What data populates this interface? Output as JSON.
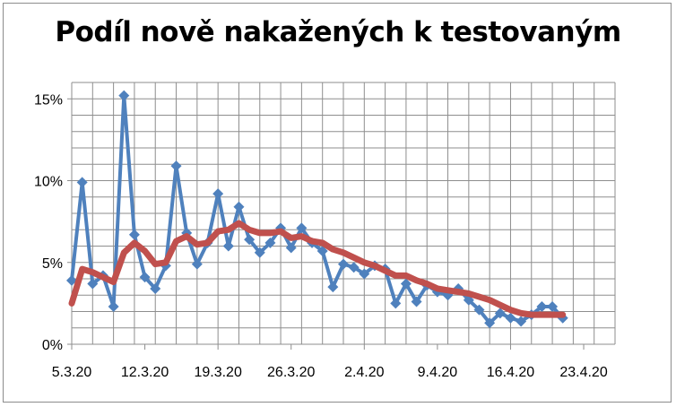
{
  "chart_data": {
    "type": "line",
    "title": "Podíl nově nakažených k testovaným",
    "xlabel": "",
    "ylabel": "",
    "ylim": [
      0,
      0.15
    ],
    "y_ticks": [
      {
        "value": 0,
        "label": "0%"
      },
      {
        "value": 0.05,
        "label": "5%"
      },
      {
        "value": 0.1,
        "label": "10%"
      },
      {
        "value": 0.15,
        "label": "15%"
      }
    ],
    "x_range": [
      0,
      48
    ],
    "x_ticks": [
      {
        "value": 0,
        "label": "5.3.20"
      },
      {
        "value": 7,
        "label": "12.3.20"
      },
      {
        "value": 14,
        "label": "19.3.20"
      },
      {
        "value": 21,
        "label": "26.3.20"
      },
      {
        "value": 28,
        "label": "2.4.20"
      },
      {
        "value": 35,
        "label": "9.4.20"
      },
      {
        "value": 42,
        "label": "16.4.20"
      },
      {
        "value": 49,
        "label": "23.4.20"
      }
    ],
    "grid": true,
    "legend": "none",
    "series": [
      {
        "color": "#4f81bd",
        "marker": "diamond",
        "points": [
          [
            0,
            0.039
          ],
          [
            1,
            0.099
          ],
          [
            2,
            0.037
          ],
          [
            3,
            0.042
          ],
          [
            4,
            0.023
          ],
          [
            5,
            0.152
          ],
          [
            6,
            0.067
          ],
          [
            7,
            0.041
          ],
          [
            8,
            0.034
          ],
          [
            9,
            0.048
          ],
          [
            10,
            0.109
          ],
          [
            11,
            0.068
          ],
          [
            12,
            0.049
          ],
          [
            13,
            0.062
          ],
          [
            14,
            0.092
          ],
          [
            15,
            0.06
          ],
          [
            16,
            0.084
          ],
          [
            17,
            0.064
          ],
          [
            18,
            0.056
          ],
          [
            19,
            0.062
          ],
          [
            20,
            0.071
          ],
          [
            21,
            0.059
          ],
          [
            22,
            0.071
          ],
          [
            23,
            0.062
          ],
          [
            24,
            0.057
          ],
          [
            25,
            0.035
          ],
          [
            26,
            0.049
          ],
          [
            27,
            0.047
          ],
          [
            28,
            0.043
          ],
          [
            29,
            0.048
          ],
          [
            30,
            0.046
          ],
          [
            31,
            0.025
          ],
          [
            32,
            0.037
          ],
          [
            33,
            0.026
          ],
          [
            34,
            0.036
          ],
          [
            35,
            0.032
          ],
          [
            36,
            0.03
          ],
          [
            37,
            0.034
          ],
          [
            38,
            0.027
          ],
          [
            39,
            0.021
          ],
          [
            40,
            0.013
          ],
          [
            41,
            0.019
          ],
          [
            42,
            0.016
          ],
          [
            43,
            0.014
          ],
          [
            44,
            0.018
          ],
          [
            45,
            0.023
          ],
          [
            46,
            0.023
          ],
          [
            47,
            0.016
          ]
        ]
      },
      {
        "color": "#c0504d",
        "marker": "none",
        "points": [
          [
            0,
            0.025
          ],
          [
            1,
            0.046
          ],
          [
            2,
            0.044
          ],
          [
            3,
            0.041
          ],
          [
            4,
            0.038
          ],
          [
            5,
            0.056
          ],
          [
            6,
            0.062
          ],
          [
            7,
            0.057
          ],
          [
            8,
            0.049
          ],
          [
            9,
            0.05
          ],
          [
            10,
            0.063
          ],
          [
            11,
            0.066
          ],
          [
            12,
            0.061
          ],
          [
            13,
            0.062
          ],
          [
            14,
            0.069
          ],
          [
            15,
            0.07
          ],
          [
            16,
            0.074
          ],
          [
            17,
            0.07
          ],
          [
            18,
            0.068
          ],
          [
            19,
            0.068
          ],
          [
            20,
            0.069
          ],
          [
            21,
            0.065
          ],
          [
            22,
            0.066
          ],
          [
            23,
            0.063
          ],
          [
            24,
            0.062
          ],
          [
            25,
            0.058
          ],
          [
            26,
            0.056
          ],
          [
            27,
            0.053
          ],
          [
            28,
            0.05
          ],
          [
            29,
            0.048
          ],
          [
            30,
            0.045
          ],
          [
            31,
            0.042
          ],
          [
            32,
            0.042
          ],
          [
            33,
            0.039
          ],
          [
            34,
            0.037
          ],
          [
            35,
            0.034
          ],
          [
            36,
            0.033
          ],
          [
            37,
            0.032
          ],
          [
            38,
            0.031
          ],
          [
            39,
            0.029
          ],
          [
            40,
            0.027
          ],
          [
            41,
            0.024
          ],
          [
            42,
            0.021
          ],
          [
            43,
            0.019
          ],
          [
            44,
            0.018
          ],
          [
            45,
            0.018
          ],
          [
            46,
            0.018
          ],
          [
            47,
            0.018
          ]
        ]
      }
    ]
  }
}
